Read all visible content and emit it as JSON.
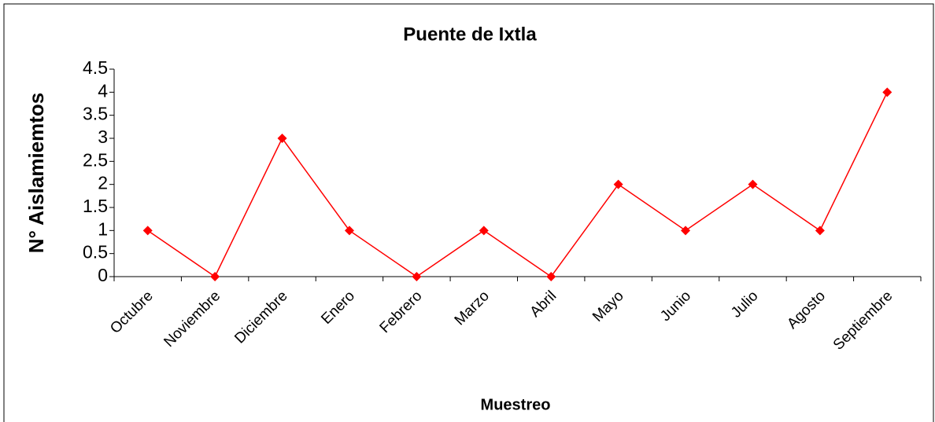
{
  "chart_data": {
    "type": "line",
    "title": "Puente de Ixtla",
    "x_label": "Muestreo",
    "y_label": "N° Aislamiemtos",
    "categories": [
      "Octubre",
      "Noviembre",
      "Diciembre",
      "Enero",
      "Febrero",
      "Marzo",
      "Abril",
      "Mayo",
      "Junio",
      "Julio",
      "Agosto",
      "Septiembre"
    ],
    "values": [
      1,
      0,
      3,
      1,
      0,
      1,
      0,
      2,
      1,
      2,
      1,
      4
    ],
    "color": "#ff0000",
    "ylim": [
      0,
      4.5
    ],
    "yticks": [
      0,
      0.5,
      1,
      1.5,
      2,
      2.5,
      3,
      3.5,
      4,
      4.5
    ],
    "grid": false
  }
}
